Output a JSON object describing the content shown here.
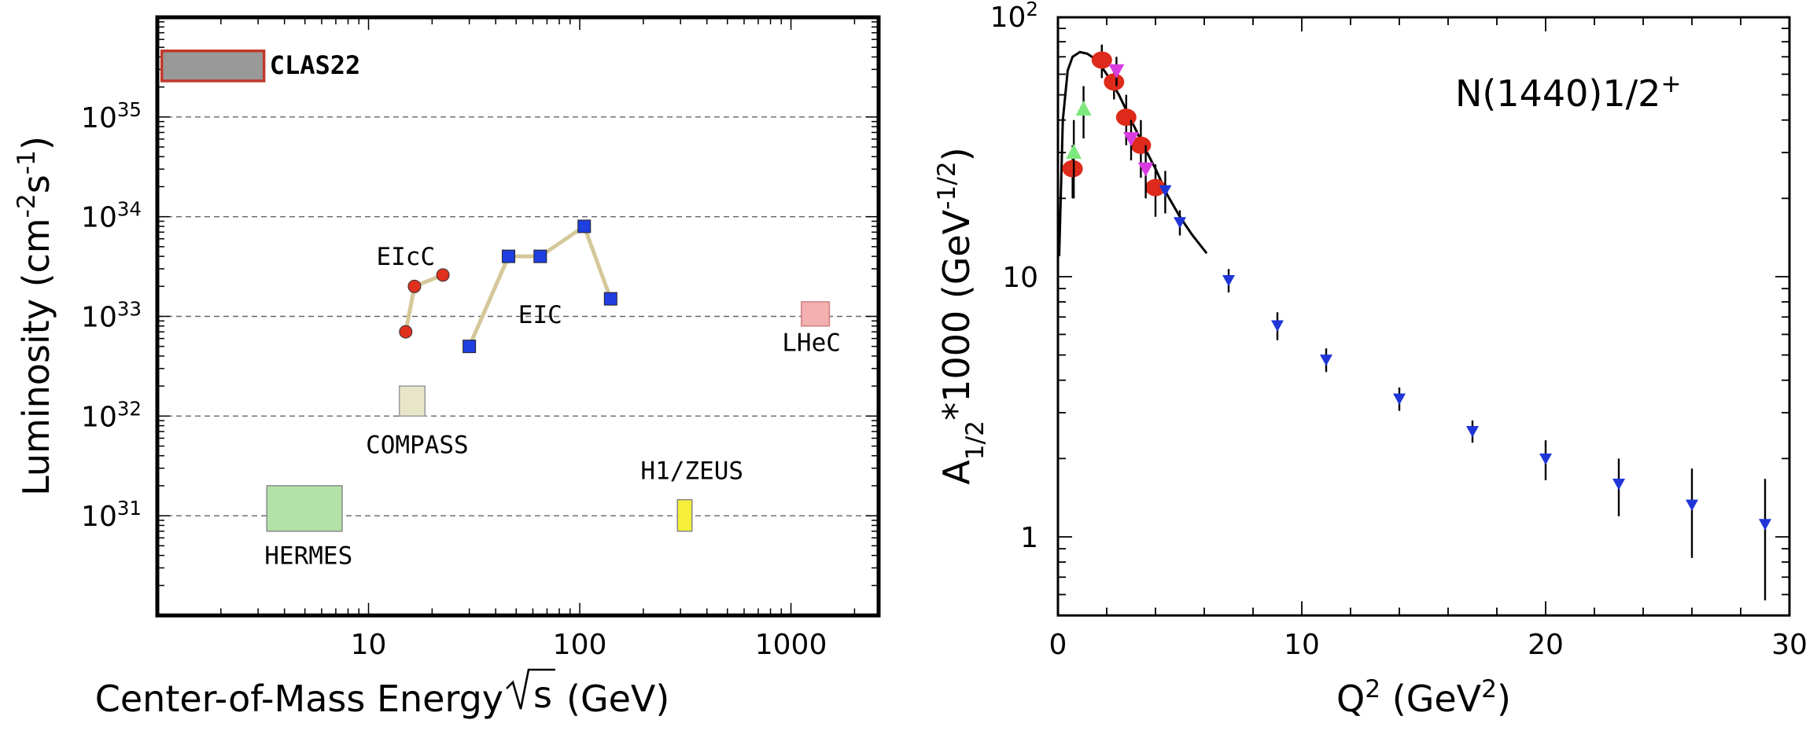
{
  "chart_data": [
    {
      "type": "scatter",
      "xscale": "log",
      "yscale": "log",
      "xlabel": "Center-of-Mass Energy",
      "xlabel_sqrt": "s",
      "xlabel_unit": "(GeV)",
      "ylabel": "Luminosity (cm",
      "ylabel_exp1": "-2",
      "ylabel_mid": "s",
      "ylabel_exp2": "-1",
      "ylabel_end": ")",
      "xlim": [
        1,
        2600
      ],
      "ylim": [
        1e+30,
        1e+36
      ],
      "xticks": [
        {
          "value": 10,
          "label": "10"
        },
        {
          "value": 100,
          "label": "100"
        },
        {
          "value": 1000,
          "label": "1000"
        }
      ],
      "yticks": [
        {
          "value": 1e+31,
          "base": "10",
          "exp": "31"
        },
        {
          "value": 1e+32,
          "base": "10",
          "exp": "32"
        },
        {
          "value": 1e+33,
          "base": "10",
          "exp": "33"
        },
        {
          "value": 1e+34,
          "base": "10",
          "exp": "34"
        },
        {
          "value": 1e+35,
          "base": "10",
          "exp": "35"
        }
      ],
      "grid": "dashed horizontal at decades",
      "series": [
        {
          "name": "EIcC",
          "color": "#e0301e",
          "marker": "circle",
          "line_color": "#d4c89a",
          "label_at": [
            15,
            4e+33
          ],
          "points": [
            [
              15,
              7e+32
            ],
            [
              16.5,
              2e+33
            ],
            [
              22.5,
              2.6e+33
            ]
          ]
        },
        {
          "name": "EIC",
          "color": "#1f3fe0",
          "marker": "square",
          "line_color": "#d4c89a",
          "label_at": [
            65,
            1.05e+33
          ],
          "points": [
            [
              30,
              5e+32
            ],
            [
              46,
              4e+33
            ],
            [
              65,
              4e+33
            ],
            [
              105,
              8e+33
            ],
            [
              140,
              1.5e+33
            ]
          ]
        }
      ],
      "boxes": [
        {
          "name": "CLAS22",
          "x": [
            1.05,
            3.2
          ],
          "y": [
            2.3e+35,
            4.6e+35
          ],
          "fill": "#999999",
          "stroke": "#c0392b",
          "label_at": [
            3.4,
            3.3e+35
          ],
          "label_anchor": "start",
          "bold": true
        },
        {
          "name": "COMPASS",
          "x": [
            14,
            18.5
          ],
          "y": [
            1e+32,
            2e+32
          ],
          "fill": "#e8e6c8",
          "stroke": "#999999",
          "label_at": [
            17,
            5.2e+31
          ],
          "label_anchor": "middle",
          "bold": false
        },
        {
          "name": "HERMES",
          "x": [
            3.3,
            7.5
          ],
          "y": [
            7e+30,
            2e+31
          ],
          "fill": "#b2e2a8",
          "stroke": "#888888",
          "label_at": [
            5.2,
            4e+30
          ],
          "label_anchor": "middle",
          "bold": false
        },
        {
          "name": "H1/ZEUS",
          "x": [
            290,
            340
          ],
          "y": [
            7e+30,
            1.45e+31
          ],
          "fill": "#f5ee3a",
          "stroke": "#888888",
          "label_at": [
            340,
            2.85e+31
          ],
          "label_anchor": "middle",
          "bold": false
        },
        {
          "name": "LHeC",
          "x": [
            1120,
            1520
          ],
          "y": [
            8e+32,
            1.4e+33
          ],
          "fill": "#f2b0b0",
          "stroke": "#d08080",
          "label_at": [
            1250,
            5.5e+32
          ],
          "label_anchor": "middle",
          "bold": false
        }
      ]
    },
    {
      "type": "scatter",
      "xscale": "linear",
      "yscale": "log",
      "title": "N(1440)1/2",
      "title_sup": "+",
      "xlabel": "Q",
      "xlabel_sup": "2",
      "xlabel_mid": " (GeV",
      "xlabel_sup2": "2",
      "xlabel_end": ")",
      "ylabel": "A",
      "ylabel_sub": "1/2",
      "ylabel_mid": "*1000 (GeV",
      "ylabel_sup": "-1/2",
      "ylabel_end": ")",
      "xlim": [
        0,
        30
      ],
      "ylim": [
        0.5,
        100
      ],
      "xticks": [
        {
          "value": 0,
          "label": "0"
        },
        {
          "value": 10,
          "label": "10"
        },
        {
          "value": 20,
          "label": "20"
        },
        {
          "value": 30,
          "label": "30"
        }
      ],
      "yticks": [
        {
          "value": 1,
          "label": "1",
          "exp": ""
        },
        {
          "value": 10,
          "label": "10",
          "exp": ""
        },
        {
          "value": 100,
          "label": "10",
          "exp": "2"
        }
      ],
      "series": [
        {
          "name": "red-ellipses",
          "color": "#dd2a1a",
          "marker": "ellipse",
          "points": [
            [
              0.6,
              26,
              6
            ],
            [
              1.8,
              68,
              10
            ],
            [
              2.3,
              56,
              8
            ],
            [
              2.8,
              41,
              9
            ],
            [
              3.4,
              32,
              8
            ],
            [
              4.0,
              22,
              5
            ]
          ]
        },
        {
          "name": "green-triangles-up",
          "color": "#7de87d",
          "marker": "triangle-up",
          "points": [
            [
              0.65,
              30,
              10
            ],
            [
              1.05,
              44,
              10
            ]
          ]
        },
        {
          "name": "magenta-triangles-down",
          "color": "#d83ce0",
          "marker": "triangle-down",
          "points": [
            [
              2.4,
              62,
              8
            ],
            [
              3.0,
              34,
              6
            ],
            [
              3.6,
              26,
              6
            ]
          ]
        },
        {
          "name": "blue-triangles-down",
          "color": "#1f35d8",
          "marker": "triangle-down",
          "points": [
            [
              4.4,
              21.5,
              4
            ],
            [
              5.0,
              16.2,
              1.8
            ],
            [
              7.0,
              9.7,
              1.0
            ],
            [
              9.0,
              6.5,
              0.8
            ],
            [
              11.0,
              4.8,
              0.5
            ],
            [
              14.0,
              3.4,
              0.35
            ],
            [
              17.0,
              2.55,
              0.25
            ],
            [
              20.0,
              2.0,
              0.35
            ],
            [
              23.0,
              1.6,
              0.4
            ],
            [
              26.0,
              1.33,
              0.5
            ],
            [
              29.0,
              1.12,
              0.55
            ]
          ]
        }
      ],
      "curve": {
        "color": "#000000",
        "points": [
          [
            0.05,
            12
          ],
          [
            0.2,
            40
          ],
          [
            0.4,
            62
          ],
          [
            0.6,
            70
          ],
          [
            0.9,
            73
          ],
          [
            1.2,
            72
          ],
          [
            1.6,
            68
          ],
          [
            2.0,
            60
          ],
          [
            2.5,
            50
          ],
          [
            3.0,
            40
          ],
          [
            3.5,
            32
          ],
          [
            4.0,
            26
          ],
          [
            4.5,
            20.5
          ],
          [
            5.0,
            17
          ],
          [
            5.5,
            14.5
          ],
          [
            6.1,
            12.3
          ]
        ]
      }
    }
  ]
}
